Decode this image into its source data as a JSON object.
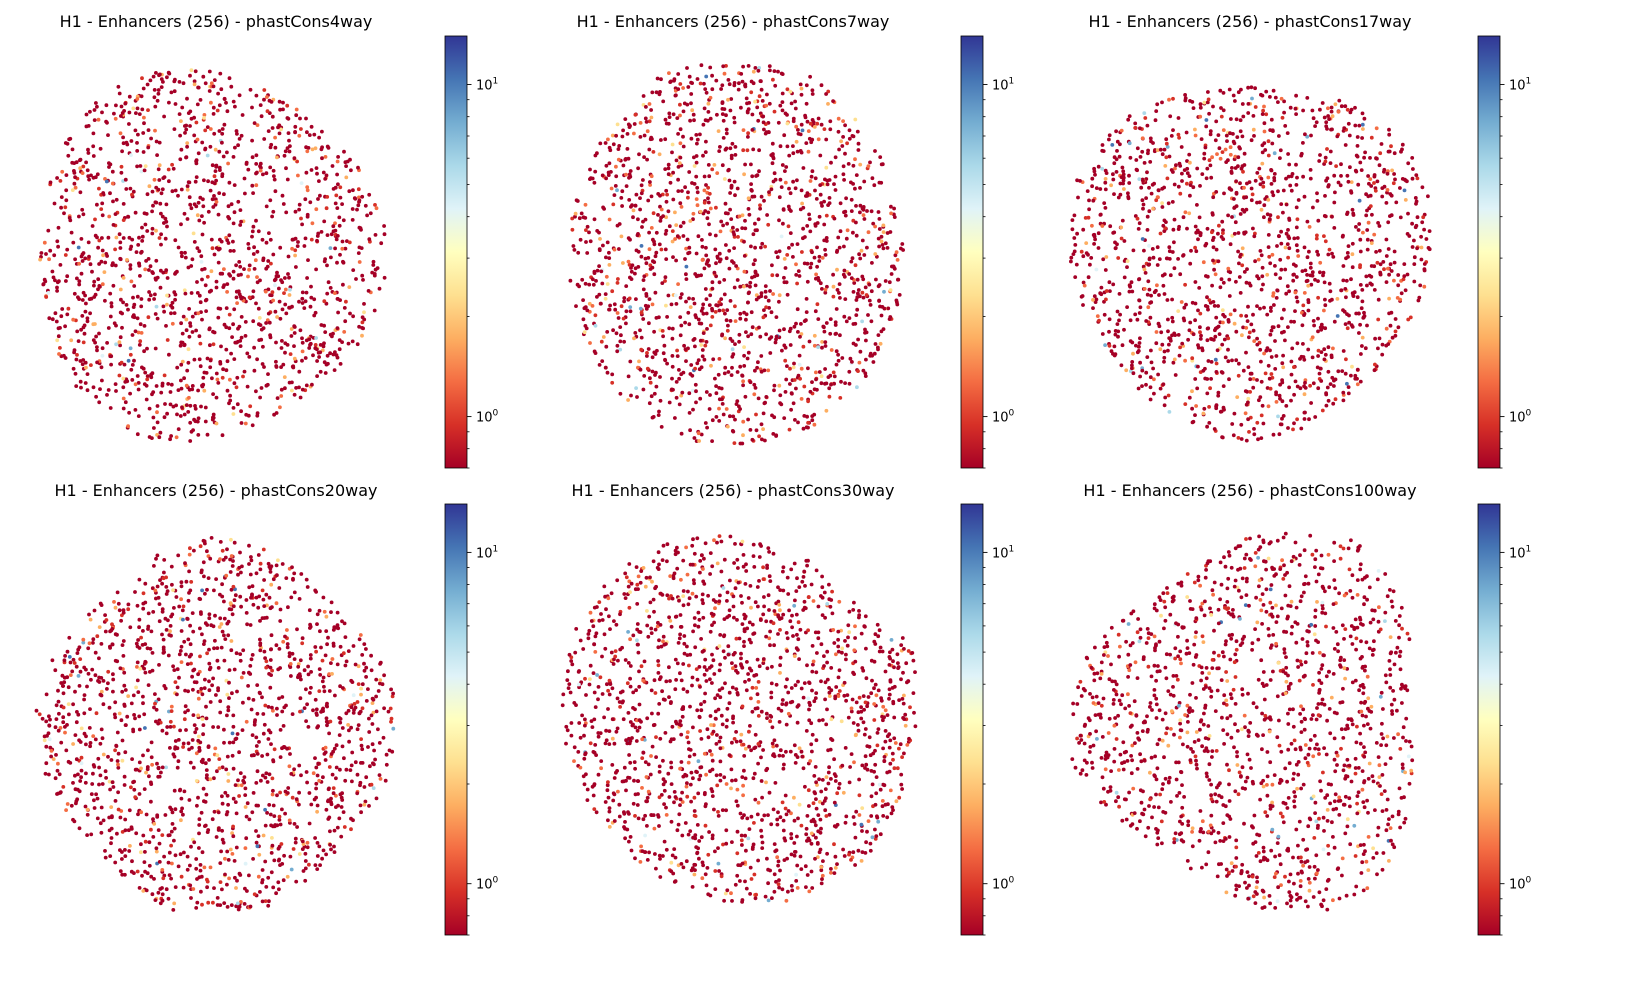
{
  "chart_data": [
    {
      "type": "scatter",
      "title": "H1 - Enhancers (256) - phastCons4way",
      "shape": "round-left",
      "n_points": 1500,
      "colorbar": {
        "scale": "log",
        "range": [
          0.7,
          14
        ],
        "ticks": [
          {
            "value": 1,
            "label": "10",
            "exp": "0"
          },
          {
            "value": 10,
            "label": "10",
            "exp": "1"
          }
        ]
      }
    },
    {
      "type": "scatter",
      "title": "H1 - Enhancers (256) - phastCons7way",
      "shape": "blob-top-bump",
      "n_points": 1600,
      "colorbar": {
        "scale": "log",
        "range": [
          0.7,
          14
        ],
        "ticks": [
          {
            "value": 1,
            "label": "10",
            "exp": "0"
          },
          {
            "value": 10,
            "label": "10",
            "exp": "1"
          }
        ]
      }
    },
    {
      "type": "scatter",
      "title": "H1 - Enhancers (256) - phastCons17way",
      "shape": "round",
      "n_points": 1550,
      "colorbar": {
        "scale": "log",
        "range": [
          0.7,
          14
        ],
        "ticks": [
          {
            "value": 1,
            "label": "10",
            "exp": "0"
          },
          {
            "value": 10,
            "label": "10",
            "exp": "1"
          }
        ]
      }
    },
    {
      "type": "scatter",
      "title": "H1 - Enhancers (256) - phastCons20way",
      "shape": "round-flat-top",
      "n_points": 1550,
      "colorbar": {
        "scale": "log",
        "range": [
          0.7,
          14
        ],
        "ticks": [
          {
            "value": 1,
            "label": "10",
            "exp": "0"
          },
          {
            "value": 10,
            "label": "10",
            "exp": "1"
          }
        ]
      }
    },
    {
      "type": "scatter",
      "title": "H1 - Enhancers (256) - phastCons30way",
      "shape": "round-right-bump",
      "n_points": 1600,
      "colorbar": {
        "scale": "log",
        "range": [
          0.7,
          14
        ],
        "ticks": [
          {
            "value": 1,
            "label": "10",
            "exp": "0"
          },
          {
            "value": 10,
            "label": "10",
            "exp": "1"
          }
        ]
      }
    },
    {
      "type": "scatter",
      "title": "H1 - Enhancers (256) - phastCons100way",
      "shape": "triangle-left-point",
      "n_points": 1400,
      "colorbar": {
        "scale": "log",
        "range": [
          0.7,
          14
        ],
        "ticks": [
          {
            "value": 1,
            "label": "10",
            "exp": "0"
          },
          {
            "value": 10,
            "label": "10",
            "exp": "1"
          }
        ]
      }
    }
  ],
  "colormap": [
    "#a50026",
    "#d73027",
    "#f46d43",
    "#fdae61",
    "#fee090",
    "#ffffbf",
    "#e0f3f8",
    "#abd9e9",
    "#74add1",
    "#4575b4",
    "#313695"
  ],
  "axes_visible": false
}
